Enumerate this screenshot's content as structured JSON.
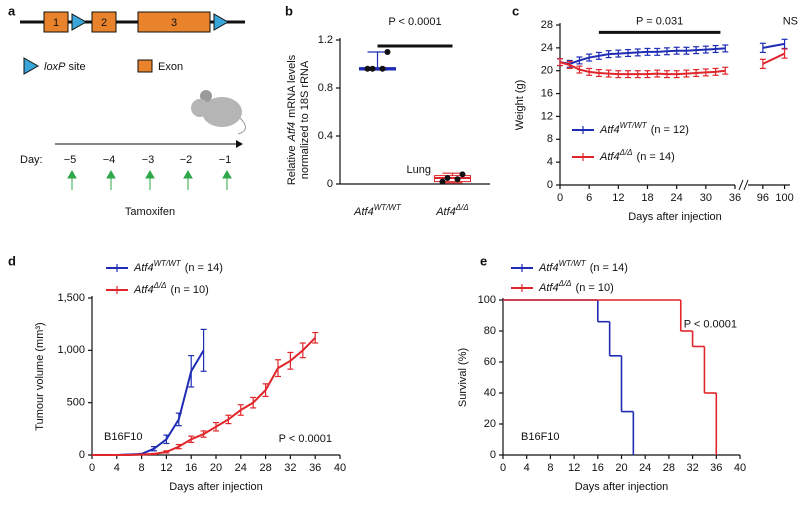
{
  "panel_labels": [
    "a",
    "b",
    "c",
    "d",
    "e"
  ],
  "diagram": {
    "exons": [
      "1",
      "2",
      "3"
    ],
    "loxp": "loxP",
    "loxp_suffix": "site",
    "exon": "Exon",
    "day_label": "Day:",
    "days": [
      "−5",
      "−4",
      "−3",
      "−2",
      "−1"
    ],
    "drug": "Tamoxifen"
  },
  "chart_data": [
    {
      "type": "dot_box",
      "ylabel_lines": [
        "Relative",
        "Atf4",
        "mRNA levels",
        "normalized to 18S rRNA"
      ],
      "groups": [
        {
          "name": "Atf4",
          "superscript": "WT/WT",
          "color": "#1f2db5",
          "values": [
            0.96,
            1.1,
            0.96,
            0.96
          ],
          "box": [
            0.95,
            0.95,
            0.96,
            0.97,
            1.1
          ]
        },
        {
          "name": "Atf4",
          "superscript": "Δ/Δ",
          "color": "#e0262b",
          "values": [
            0.02,
            0.08,
            0.05,
            0.04
          ],
          "box": [
            0.01,
            0.02,
            0.05,
            0.07,
            0.09
          ]
        }
      ],
      "ylim": [
        0,
        1.2
      ],
      "yticks": [
        0,
        0.4,
        0.8,
        1.2
      ],
      "annotations": [
        "P < 0.0001",
        "Lung"
      ]
    },
    {
      "type": "line",
      "ylabel": "Weight (g)",
      "xlabel": "Days after injection",
      "x": [
        0,
        2,
        4,
        6,
        8,
        10,
        12,
        14,
        16,
        18,
        20,
        22,
        24,
        26,
        28,
        30,
        32,
        34,
        96,
        100
      ],
      "xlim": [
        0,
        36
      ],
      "xticks": [
        0,
        6,
        12,
        18,
        24,
        30,
        36
      ],
      "x_break": {
        "xlim": [
          94,
          101
        ],
        "xticks": [
          96,
          100
        ]
      },
      "ylim": [
        0,
        28
      ],
      "yticks": [
        0,
        4,
        8,
        12,
        16,
        20,
        24,
        28
      ],
      "series": [
        {
          "name": "Atf4",
          "superscript": "WT/WT",
          "note": "(n = 12)",
          "color": "#1f2db5",
          "values": [
            21.5,
            21.2,
            21.8,
            22.3,
            22.6,
            22.9,
            23.0,
            23.1,
            23.2,
            23.3,
            23.3,
            23.4,
            23.5,
            23.5,
            23.6,
            23.7,
            23.8,
            23.9,
            24.0,
            24.7
          ],
          "errors": [
            0.6,
            0.6,
            0.6,
            0.6,
            0.6,
            0.6,
            0.6,
            0.6,
            0.6,
            0.6,
            0.6,
            0.6,
            0.6,
            0.6,
            0.6,
            0.6,
            0.6,
            0.6,
            0.8,
            0.8
          ]
        },
        {
          "name": "Atf4",
          "superscript": "Δ/Δ",
          "note": "(n = 14)",
          "color": "#e0262b",
          "values": [
            21.5,
            21.0,
            20.2,
            19.8,
            19.6,
            19.5,
            19.4,
            19.4,
            19.4,
            19.4,
            19.5,
            19.4,
            19.4,
            19.5,
            19.6,
            19.7,
            19.8,
            20.0,
            21.2,
            23.0
          ],
          "errors": [
            0.6,
            0.6,
            0.6,
            0.6,
            0.6,
            0.6,
            0.6,
            0.6,
            0.6,
            0.6,
            0.6,
            0.6,
            0.6,
            0.6,
            0.6,
            0.6,
            0.6,
            0.6,
            0.8,
            0.8
          ]
        }
      ],
      "annotations": [
        "P = 0.031",
        "NS"
      ]
    },
    {
      "type": "line",
      "ylabel": "Tumour volume (mm³)",
      "xlabel": "Days after injection",
      "xlim": [
        0,
        40
      ],
      "xticks": [
        0,
        4,
        8,
        12,
        16,
        20,
        24,
        28,
        32,
        36,
        40
      ],
      "ylim": [
        0,
        1500
      ],
      "yticks": [
        0,
        500,
        {
          "value": 1000,
          "label": "1,000"
        },
        {
          "value": 1500,
          "label": "1,500"
        }
      ],
      "series": [
        {
          "name": "Atf4",
          "superscript": "WT/WT",
          "note": "(n = 14)",
          "color": "#1f2db5",
          "x": [
            0,
            2,
            4,
            6,
            8,
            10,
            12,
            14,
            16,
            18
          ],
          "values": [
            0,
            0,
            0,
            5,
            10,
            60,
            150,
            340,
            800,
            1000
          ],
          "errors": [
            0,
            0,
            0,
            2,
            5,
            20,
            40,
            60,
            150,
            200
          ]
        },
        {
          "name": "Atf4",
          "superscript": "Δ/Δ",
          "note": "(n = 10)",
          "color": "#e0262b",
          "x": [
            0,
            2,
            4,
            6,
            8,
            10,
            12,
            14,
            16,
            18,
            20,
            22,
            24,
            26,
            28,
            30,
            32,
            34,
            36
          ],
          "values": [
            0,
            0,
            0,
            0,
            5,
            10,
            30,
            80,
            150,
            200,
            270,
            340,
            430,
            500,
            620,
            830,
            900,
            1000,
            1120
          ],
          "errors": [
            0,
            0,
            0,
            0,
            3,
            5,
            10,
            20,
            30,
            30,
            40,
            40,
            50,
            50,
            60,
            80,
            80,
            70,
            50
          ]
        }
      ],
      "annotations": [
        "B16F10",
        "P < 0.0001"
      ]
    },
    {
      "type": "survival",
      "ylabel": "Survival (%)",
      "xlabel": "Days after injection",
      "xlim": [
        0,
        40
      ],
      "xticks": [
        0,
        4,
        8,
        12,
        16,
        20,
        24,
        28,
        32,
        36,
        40
      ],
      "ylim": [
        0,
        100
      ],
      "yticks": [
        0,
        20,
        40,
        60,
        80,
        100
      ],
      "series": [
        {
          "name": "Atf4",
          "superscript": "WT/WT",
          "note": "(n = 14)",
          "color": "#1f2db5",
          "x": [
            0,
            16,
            18,
            20,
            22
          ],
          "values": [
            100,
            86,
            64,
            28,
            0
          ]
        },
        {
          "name": "Atf4",
          "superscript": "Δ/Δ",
          "note": "(n = 10)",
          "color": "#e0262b",
          "x": [
            0,
            30,
            32,
            34,
            36
          ],
          "values": [
            100,
            80,
            70,
            40,
            0
          ]
        }
      ],
      "annotations": [
        "P < 0.0001",
        "B16F10"
      ]
    }
  ]
}
